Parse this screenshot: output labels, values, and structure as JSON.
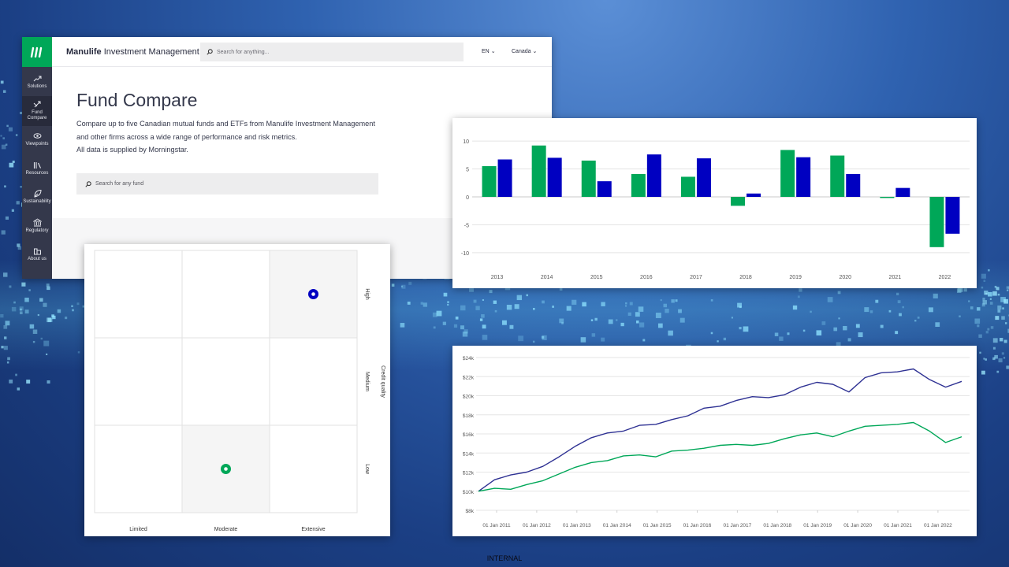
{
  "header": {
    "brand_bold": "Manulife",
    "brand_rest": "Investment Management",
    "search_placeholder": "Search for anything...",
    "language": "EN",
    "region": "Canada"
  },
  "sidebar": {
    "items": [
      {
        "label_lines": [
          "Solutions"
        ],
        "icon": "trend-icon"
      },
      {
        "label_lines": [
          "Fund",
          "Compare"
        ],
        "icon": "compare-arrows-icon",
        "active": true
      },
      {
        "label_lines": [
          "Viewpoints"
        ],
        "icon": "eye-icon"
      },
      {
        "label_lines": [
          "Resources"
        ],
        "icon": "books-icon"
      },
      {
        "label_lines": [
          "Sustainability"
        ],
        "icon": "leaf-icon"
      },
      {
        "label_lines": [
          "Regulatory"
        ],
        "icon": "bank-icon"
      },
      {
        "label_lines": [
          "About us"
        ],
        "icon": "building-icon"
      }
    ]
  },
  "main": {
    "title": "Fund Compare",
    "description_lines": [
      "Compare up to five Canadian mutual funds and ETFs from Manulife Investment Management",
      "and other firms across a wide range of performance and risk metrics.",
      "All data is supplied by Morningstar."
    ],
    "fund_search_placeholder": "Search for any fund"
  },
  "colors": {
    "green": "#00a758",
    "blue": "#0000c1",
    "navy": "#2e3193",
    "sidebar": "#34384b"
  },
  "chart_data": [
    {
      "type": "bar",
      "categories": [
        "2013",
        "2014",
        "2015",
        "2016",
        "2017",
        "2018",
        "2019",
        "2020",
        "2021",
        "2022"
      ],
      "series": [
        {
          "values": [
            5.5,
            9.2,
            6.5,
            4.1,
            3.6,
            -1.6,
            8.4,
            7.4,
            -0.2,
            -9.0
          ]
        },
        {
          "values": [
            6.7,
            7.0,
            2.8,
            7.6,
            6.9,
            0.6,
            7.1,
            4.1,
            1.6,
            -6.6
          ]
        }
      ],
      "ylim": [
        -11,
        11
      ],
      "yticks": [
        "10",
        "5",
        "0",
        "-5",
        "-10"
      ],
      "grid": true
    },
    {
      "type": "line",
      "x_labels": [
        "01 Jan 2011",
        "01 Jan 2012",
        "01 Jan 2013",
        "01 Jan 2014",
        "01 Jan 2015",
        "01 Jan 2016",
        "01 Jan 2017",
        "01 Jan 2018",
        "01 Jan 2019",
        "01 Jan 2020",
        "01 Jan 2021",
        "01 Jan 2022"
      ],
      "yticks": [
        "$24k",
        "$22k",
        "$20k",
        "$18k",
        "$16k",
        "$14k",
        "$12k",
        "$10k",
        "$8k"
      ],
      "ylim": [
        8000,
        24000
      ],
      "series": [
        {
          "values": [
            10000,
            11200,
            11700,
            12000,
            12600,
            13600,
            14700,
            15600,
            16100,
            16300,
            16900,
            17000,
            17500,
            17900,
            18700,
            18900,
            19500,
            19900,
            19800,
            20100,
            20900,
            21400,
            21200,
            20400,
            21900,
            22400,
            22500,
            22800,
            21700,
            20900,
            21500
          ]
        },
        {
          "values": [
            10000,
            10300,
            10200,
            10700,
            11100,
            11800,
            12500,
            13000,
            13200,
            13700,
            13800,
            13600,
            14200,
            14300,
            14500,
            14800,
            14900,
            14800,
            15000,
            15500,
            15900,
            16100,
            15700,
            16300,
            16800,
            16900,
            17000,
            17200,
            16300,
            15100,
            15700
          ]
        }
      ],
      "grid": true
    },
    {
      "type": "scatter",
      "x_categories": [
        "Limited",
        "Moderate",
        "Extensive"
      ],
      "y_categories": [
        "Low",
        "Medium",
        "High"
      ],
      "y_title": "Credit quality",
      "points": [
        {
          "x": "Extensive",
          "y": "High",
          "color": "#0000c1"
        },
        {
          "x": "Moderate",
          "y": "Low",
          "color": "#00a758"
        }
      ]
    }
  ],
  "footer": {
    "classification": "INTERNAL"
  }
}
